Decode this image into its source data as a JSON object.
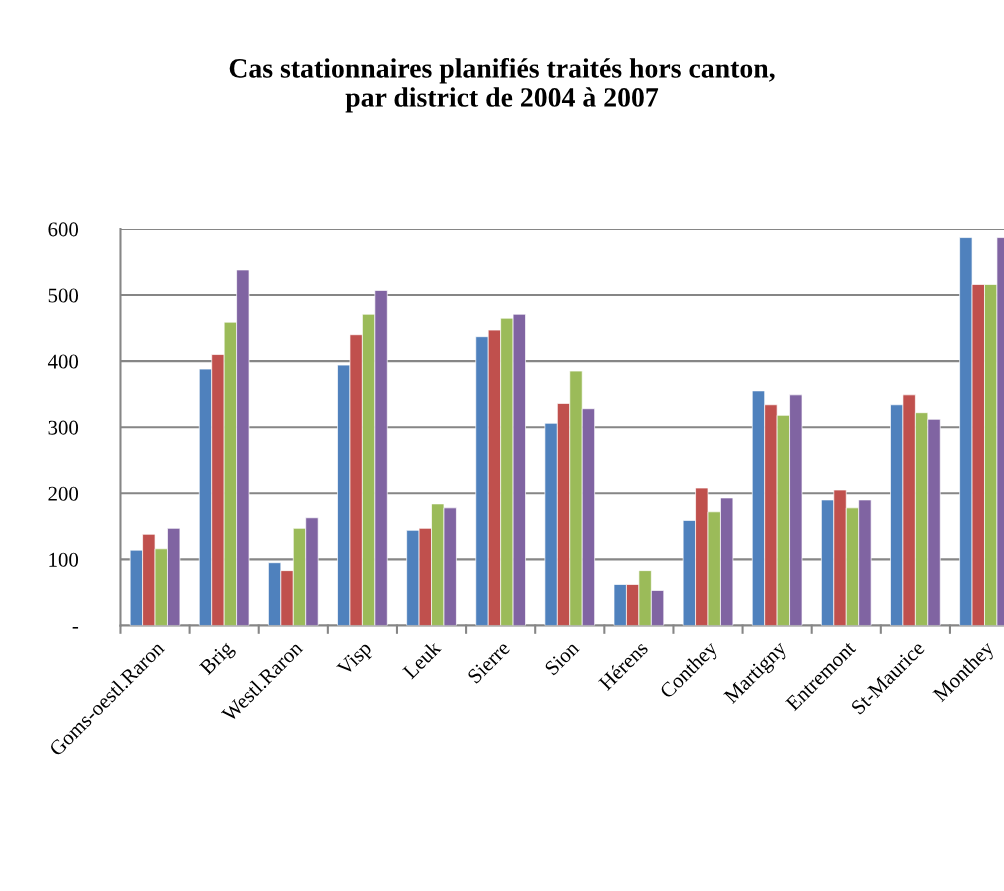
{
  "chart_data": {
    "type": "bar",
    "title": "Cas stationnaires planifiés traités hors canton,\npar district de 2004 à 2007",
    "categories": [
      "Goms-oestl.Raron",
      "Brig",
      "Westl.Raron",
      "Visp",
      "Leuk",
      "Sierre",
      "Sion",
      "Hérens",
      "Conthey",
      "Martigny",
      "Entremont",
      "St-Maurice",
      "Monthey"
    ],
    "series": [
      {
        "color": "#4f81bd",
        "values": [
          114,
          388,
          95,
          394,
          144,
          437,
          306,
          62,
          159,
          355,
          190,
          334,
          587
        ]
      },
      {
        "color": "#c0504d",
        "values": [
          138,
          410,
          83,
          440,
          147,
          447,
          336,
          62,
          208,
          334,
          205,
          349,
          516
        ]
      },
      {
        "color": "#9bbb59",
        "values": [
          116,
          459,
          147,
          471,
          184,
          465,
          385,
          83,
          172,
          318,
          178,
          322,
          516
        ]
      },
      {
        "color": "#8064a2",
        "values": [
          147,
          538,
          163,
          507,
          178,
          471,
          328,
          53,
          193,
          349,
          190,
          312,
          587
        ]
      }
    ],
    "ylim": [
      0,
      600
    ],
    "yticks": [
      {
        "value": 0,
        "label": "-"
      },
      100,
      200,
      300,
      400,
      500,
      600
    ],
    "grid": "y",
    "legend": false
  }
}
